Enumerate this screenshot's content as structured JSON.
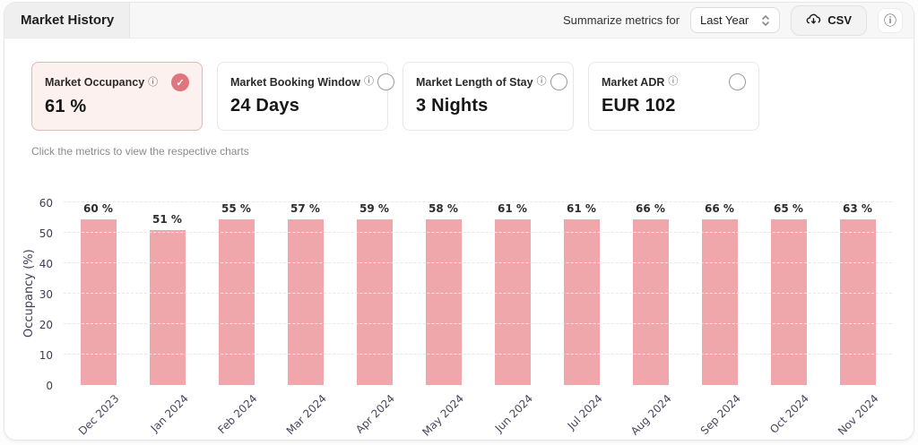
{
  "header": {
    "title": "Market History",
    "summarize_label": "Summarize metrics for",
    "period_select": {
      "value": "Last Year"
    },
    "csv_button": "CSV"
  },
  "icons": {
    "info": "ⓘ",
    "check": "✓"
  },
  "cards": [
    {
      "title": "Market Occupancy",
      "value": "61 %",
      "selected": true
    },
    {
      "title": "Market Booking Window",
      "value": "24 Days",
      "selected": false
    },
    {
      "title": "Market Length of Stay",
      "value": "3 Nights",
      "selected": false
    },
    {
      "title": "Market ADR",
      "value": "EUR 102",
      "selected": false
    }
  ],
  "hint": "Click the metrics to view the respective charts",
  "chart_data": {
    "type": "bar",
    "categories": [
      "Dec 2023",
      "Jan 2024",
      "Feb 2024",
      "Mar 2024",
      "Apr 2024",
      "May 2024",
      "Jun 2024",
      "Jul 2024",
      "Aug 2024",
      "Sep 2024",
      "Oct 2024",
      "Nov 2024"
    ],
    "values": [
      60,
      51,
      55,
      57,
      59,
      58,
      61,
      61,
      66,
      66,
      65,
      63
    ],
    "value_suffix": " %",
    "title": "",
    "xlabel": "",
    "ylabel": "Occupancy (%)",
    "yticks": [
      0,
      10,
      20,
      30,
      40,
      50,
      60
    ],
    "ylim": [
      0,
      66
    ],
    "bar_color": "#f0a7ab",
    "grid": "horizontal-dashed",
    "legend": "none"
  },
  "colors": {
    "accent": "#e0767b",
    "selected_card_bg": "#fdf1f0",
    "selected_card_border": "#e9b6b4",
    "bar": "#f0a7ab",
    "header_bg": "#f7f7f7"
  }
}
